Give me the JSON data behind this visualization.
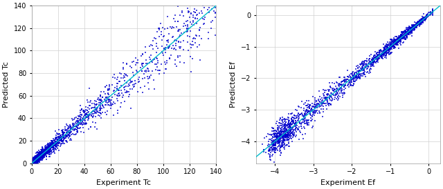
{
  "plot1": {
    "xlabel": "Experiment Tc",
    "ylabel": "Predicted Tc",
    "xlim": [
      0,
      140
    ],
    "ylim": [
      0,
      140
    ],
    "xticks": [
      0,
      20,
      40,
      60,
      80,
      100,
      120,
      140
    ],
    "yticks": [
      0,
      20,
      40,
      60,
      80,
      100,
      120,
      140
    ],
    "scatter_color": "#0000cc",
    "line_color": "#00bbcc",
    "seed": 42,
    "n_points": 2000
  },
  "plot2": {
    "xlabel": "Experiment Ef",
    "ylabel": "Predicted Ef",
    "xlim": [
      -4.5,
      0.3
    ],
    "ylim": [
      -4.7,
      0.3
    ],
    "xticks": [
      -4,
      -3,
      -2,
      -1,
      0
    ],
    "yticks": [
      -4,
      -3,
      -2,
      -1,
      0
    ],
    "scatter_color": "#0000cc",
    "line_color": "#00bbcc",
    "seed": 77,
    "n_points": 2000
  },
  "background_color": "#ffffff",
  "grid_color": "#d0d0d0",
  "tick_label_fontsize": 7,
  "axis_label_fontsize": 8,
  "figsize": [
    6.4,
    2.74
  ],
  "dpi": 100
}
